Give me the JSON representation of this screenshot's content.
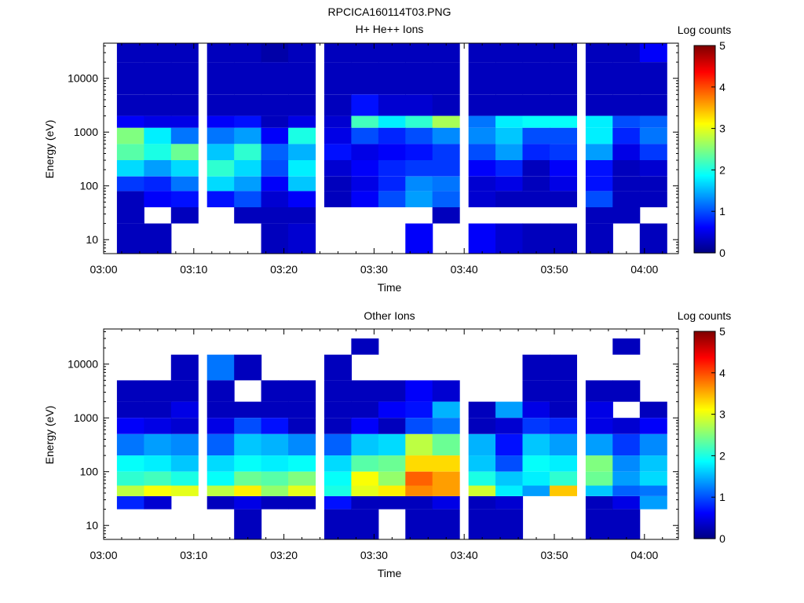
{
  "figure_title": "RPCICA160114T03.PNG",
  "panels": [
    {
      "title": "H+ He++ Ions",
      "xlabel": "Time",
      "ylabel": "Energy (eV)",
      "colorbar_label": "Log counts"
    },
    {
      "title": "Other Ions",
      "xlabel": "Time",
      "ylabel": "Energy (eV)",
      "colorbar_label": "Log counts"
    }
  ],
  "chart_data": [
    {
      "type": "heatmap",
      "title": "H+ He++ Ions",
      "xlabel": "Time",
      "ylabel": "Energy (eV)",
      "yscale": "log",
      "x_ticks": [
        "03:00",
        "03:10",
        "03:20",
        "03:30",
        "03:40",
        "03:50",
        "04:00"
      ],
      "y_ticks": [
        "10",
        "100",
        "1000",
        "10000"
      ],
      "ylim": [
        5.5,
        45000
      ],
      "colorbar": {
        "label": "Log counts",
        "range": [
          0,
          5
        ],
        "ticks": [
          "0",
          "1",
          "2",
          "3",
          "4",
          "5"
        ],
        "colormap": "jet"
      },
      "time_columns": [
        "03:03",
        "03:06",
        "03:09",
        "03:13",
        "03:16",
        "03:19",
        "03:22",
        "03:26",
        "03:29",
        "03:32",
        "03:35",
        "03:38",
        "03:42",
        "03:45",
        "03:48",
        "03:51",
        "03:55",
        "03:58",
        "04:01"
      ],
      "energy_bands_eV": [
        {
          "energy_range": [
            20000,
            45000
          ],
          "log_counts": [
            0.3,
            0.3,
            0.3,
            0.3,
            0.3,
            0.2,
            0.3,
            0.3,
            0.3,
            0.3,
            0.3,
            0.3,
            0.3,
            0.3,
            0.3,
            0.3,
            0.3,
            0.3,
            0.6
          ]
        },
        {
          "energy_range": [
            5000,
            20000
          ],
          "log_counts": [
            0.3,
            0.3,
            0.3,
            0.3,
            0.3,
            0.3,
            0.3,
            0.3,
            0.3,
            0.3,
            0.3,
            0.3,
            0.3,
            0.3,
            0.3,
            0.3,
            0.3,
            0.3,
            0.3
          ]
        },
        {
          "energy_range": [
            2000,
            5000
          ],
          "log_counts": [
            0.3,
            0.3,
            0.3,
            0.3,
            0.3,
            0.3,
            0.3,
            0.3,
            0.7,
            0.4,
            0.4,
            0.3,
            0.3,
            0.3,
            0.3,
            0.3,
            0.3,
            0.3,
            0.3
          ]
        },
        {
          "energy_range": [
            1200,
            2000
          ],
          "log_counts": [
            0.6,
            0.5,
            0.5,
            0.6,
            0.7,
            0.3,
            0.5,
            0.4,
            2.2,
            1.8,
            2.1,
            2.7,
            1.2,
            1.8,
            1.9,
            1.9,
            1.8,
            1.0,
            1.1
          ]
        },
        {
          "energy_range": [
            600,
            1200
          ],
          "log_counts": [
            2.5,
            1.8,
            1.2,
            1.2,
            1.4,
            0.6,
            2.0,
            0.5,
            1.0,
            0.8,
            1.0,
            1.3,
            1.3,
            1.6,
            1.0,
            1.0,
            1.8,
            0.8,
            1.2
          ]
        },
        {
          "energy_range": [
            300,
            600
          ],
          "log_counts": [
            2.3,
            2.0,
            2.4,
            1.6,
            2.1,
            1.1,
            1.5,
            0.7,
            0.5,
            0.6,
            0.7,
            0.9,
            1.0,
            1.4,
            0.8,
            0.9,
            1.4,
            0.5,
            0.9
          ]
        },
        {
          "energy_range": [
            150,
            300
          ],
          "log_counts": [
            1.7,
            1.4,
            1.7,
            2.1,
            1.7,
            1.0,
            1.8,
            0.4,
            0.6,
            0.8,
            0.9,
            0.9,
            0.6,
            0.8,
            0.3,
            0.6,
            0.7,
            0.3,
            0.4
          ]
        },
        {
          "energy_range": [
            80,
            150
          ],
          "log_counts": [
            0.9,
            0.8,
            1.2,
            1.7,
            1.4,
            0.6,
            1.6,
            0.3,
            0.5,
            0.8,
            1.3,
            1.2,
            0.4,
            0.5,
            0.3,
            0.5,
            0.7,
            0.3,
            0.3
          ]
        },
        {
          "energy_range": [
            40,
            80
          ],
          "log_counts": [
            0.3,
            0.6,
            0.7,
            0.7,
            1.0,
            0.4,
            0.6,
            0.3,
            0.6,
            1.0,
            1.4,
            1.1,
            0.4,
            0.3,
            0.3,
            0.3,
            1.0,
            0.3,
            0.3
          ]
        },
        {
          "energy_range": [
            20,
            40
          ],
          "log_counts": [
            0.3,
            null,
            0.3,
            null,
            0.3,
            0.3,
            0.3,
            null,
            null,
            null,
            null,
            0.3,
            null,
            null,
            null,
            null,
            0.3,
            0.3,
            null
          ]
        },
        {
          "energy_range": [
            5.5,
            20
          ],
          "log_counts": [
            0.3,
            0.3,
            null,
            null,
            null,
            0.3,
            0.4,
            null,
            null,
            null,
            0.6,
            null,
            0.6,
            0.4,
            0.3,
            0.3,
            0.3,
            null,
            0.3
          ]
        }
      ]
    },
    {
      "type": "heatmap",
      "title": "Other Ions",
      "xlabel": "Time",
      "ylabel": "Energy (eV)",
      "yscale": "log",
      "x_ticks": [
        "03:00",
        "03:10",
        "03:20",
        "03:30",
        "03:40",
        "03:50",
        "04:00"
      ],
      "y_ticks": [
        "10",
        "100",
        "1000",
        "10000"
      ],
      "ylim": [
        5.5,
        45000
      ],
      "colorbar": {
        "label": "Log counts",
        "range": [
          0,
          5
        ],
        "ticks": [
          "0",
          "1",
          "2",
          "3",
          "4",
          "5"
        ],
        "colormap": "jet"
      },
      "time_columns": [
        "03:03",
        "03:06",
        "03:09",
        "03:13",
        "03:16",
        "03:19",
        "03:22",
        "03:26",
        "03:29",
        "03:32",
        "03:35",
        "03:38",
        "03:42",
        "03:45",
        "03:48",
        "03:51",
        "03:55",
        "03:58",
        "04:01"
      ],
      "energy_bands_eV": [
        {
          "energy_range": [
            15000,
            30000
          ],
          "log_counts": [
            null,
            null,
            null,
            null,
            null,
            null,
            null,
            null,
            0.3,
            null,
            null,
            null,
            null,
            null,
            null,
            null,
            null,
            0.3,
            null
          ]
        },
        {
          "energy_range": [
            5000,
            15000
          ],
          "log_counts": [
            null,
            null,
            0.3,
            1.2,
            0.3,
            null,
            null,
            0.3,
            null,
            null,
            null,
            null,
            null,
            null,
            0.3,
            0.3,
            null,
            null,
            null
          ]
        },
        {
          "energy_range": [
            2000,
            5000
          ],
          "log_counts": [
            0.3,
            0.3,
            0.3,
            0.3,
            null,
            0.3,
            0.3,
            0.3,
            0.3,
            0.3,
            0.6,
            0.4,
            null,
            null,
            0.3,
            0.3,
            0.3,
            0.3,
            null
          ]
        },
        {
          "energy_range": [
            1000,
            2000
          ],
          "log_counts": [
            0.3,
            0.3,
            0.5,
            0.3,
            0.3,
            0.3,
            0.3,
            0.3,
            0.3,
            0.6,
            0.7,
            1.5,
            0.3,
            1.4,
            0.5,
            0.3,
            0.5,
            null,
            0.3
          ]
        },
        {
          "energy_range": [
            500,
            1000
          ],
          "log_counts": [
            0.6,
            0.5,
            0.4,
            0.5,
            1.0,
            0.7,
            0.3,
            0.3,
            0.6,
            0.3,
            1.0,
            1.2,
            0.3,
            0.4,
            0.9,
            0.8,
            0.5,
            0.4,
            0.6
          ]
        },
        {
          "energy_range": [
            200,
            500
          ],
          "log_counts": [
            1.2,
            1.4,
            1.3,
            1.1,
            1.6,
            1.5,
            1.3,
            1.1,
            1.6,
            1.7,
            2.8,
            2.4,
            1.5,
            0.7,
            1.6,
            1.4,
            1.4,
            0.9,
            1.3
          ]
        },
        {
          "energy_range": [
            100,
            200
          ],
          "log_counts": [
            1.9,
            1.8,
            1.6,
            1.7,
            1.9,
            1.8,
            1.9,
            1.7,
            2.3,
            2.4,
            3.3,
            3.3,
            1.6,
            1.0,
            1.9,
            1.8,
            2.5,
            1.3,
            1.6
          ]
        },
        {
          "energy_range": [
            55,
            100
          ],
          "log_counts": [
            2.1,
            2.2,
            2.0,
            1.9,
            2.4,
            2.3,
            2.5,
            1.9,
            3.1,
            2.6,
            3.9,
            3.6,
            2.0,
            1.6,
            1.8,
            2.1,
            2.4,
            1.4,
            1.7
          ]
        },
        {
          "energy_range": [
            35,
            55
          ],
          "log_counts": [
            2.8,
            3.1,
            3.0,
            2.8,
            3.2,
            2.6,
            3.0,
            2.0,
            3.0,
            3.2,
            3.7,
            3.6,
            2.9,
            1.8,
            1.4,
            3.4,
            1.6,
            1.1,
            1.2
          ]
        },
        {
          "energy_range": [
            20,
            35
          ],
          "log_counts": [
            0.8,
            0.4,
            null,
            0.3,
            0.5,
            0.3,
            0.3,
            0.7,
            0.3,
            0.3,
            0.3,
            0.5,
            0.3,
            0.4,
            null,
            null,
            0.3,
            0.5,
            1.4
          ]
        },
        {
          "energy_range": [
            5.5,
            20
          ],
          "log_counts": [
            null,
            null,
            null,
            null,
            0.3,
            null,
            null,
            0.3,
            0.3,
            null,
            0.3,
            0.3,
            0.3,
            0.3,
            null,
            null,
            0.3,
            0.3,
            null
          ]
        }
      ]
    }
  ]
}
